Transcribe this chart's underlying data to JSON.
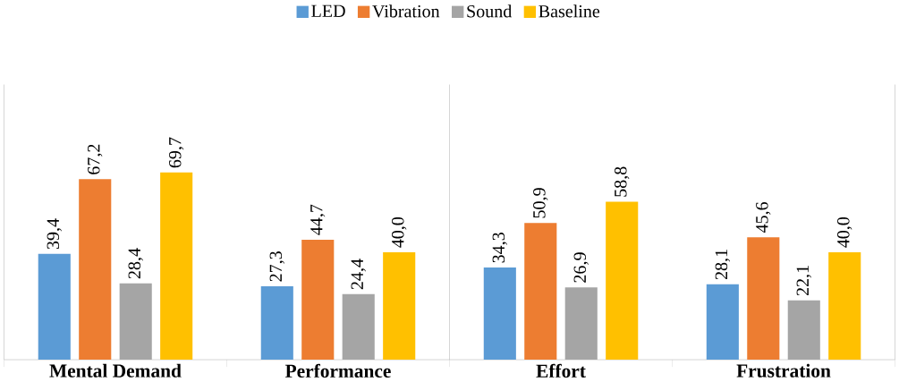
{
  "chart_data": {
    "type": "bar",
    "categories": [
      "Mental Demand",
      "Performance",
      "Effort",
      "Frustration"
    ],
    "series": [
      {
        "name": "LED",
        "color": "#5b9bd5",
        "values": [
          39.4,
          27.3,
          34.3,
          28.1
        ],
        "value_labels": [
          "39,4",
          "27,3",
          "34,3",
          "28,1"
        ]
      },
      {
        "name": "Vibration",
        "color": "#ed7d31",
        "values": [
          67.2,
          44.7,
          50.9,
          45.6
        ],
        "value_labels": [
          "67,2",
          "44,7",
          "50,9",
          "45,6"
        ]
      },
      {
        "name": "Sound",
        "color": "#a5a5a5",
        "values": [
          28.4,
          24.4,
          26.9,
          22.1
        ],
        "value_labels": [
          "28,4",
          "24,4",
          "26,9",
          "22,1"
        ]
      },
      {
        "name": "Baseline",
        "color": "#ffc000",
        "values": [
          69.7,
          40.0,
          58.8,
          40.0
        ],
        "value_labels": [
          "69,7",
          "40,0",
          "58,8",
          "40,0"
        ]
      }
    ],
    "legend": "top"
  }
}
